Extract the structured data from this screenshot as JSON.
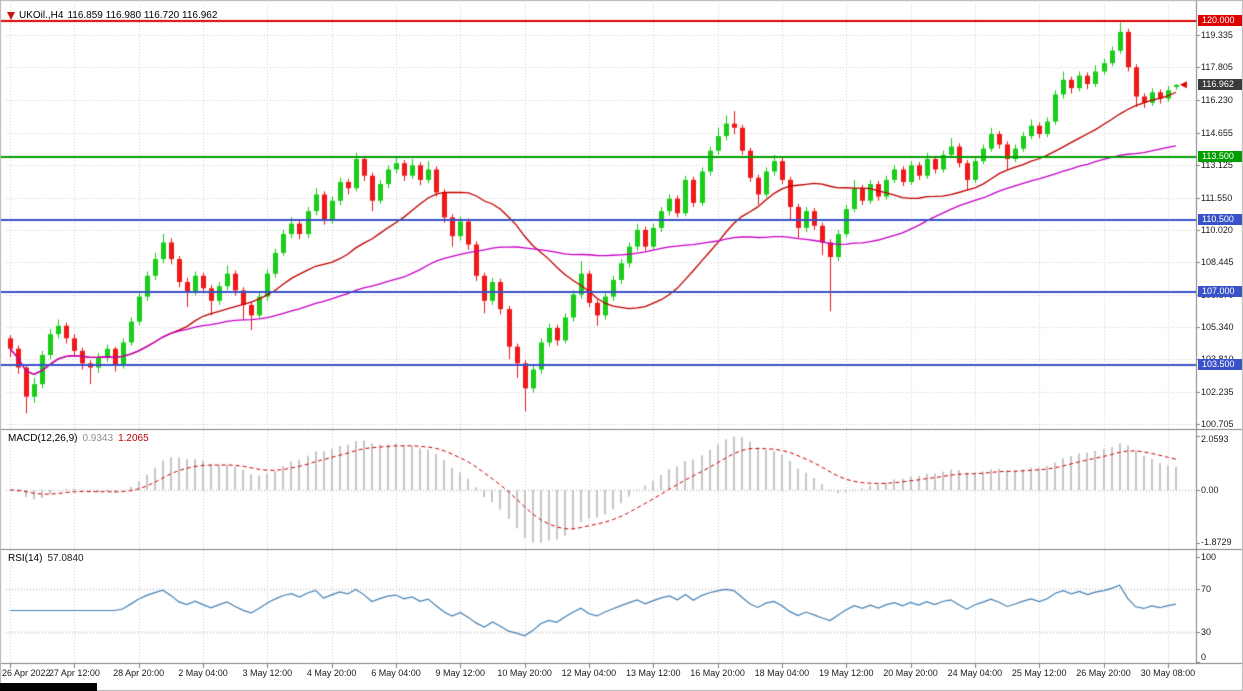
{
  "chart_data": {
    "type": "candlestick",
    "title": {
      "symbol": "UKOil.,H4",
      "ohlc": "116.859 116.980 116.720 116.962"
    },
    "ylim": [
      100.45,
      120.55
    ],
    "price_ticks": [
      "119.335",
      "117.805",
      "116.230",
      "114.655",
      "113.125",
      "111.550",
      "110.020",
      "108.445",
      "106.870",
      "105.340",
      "103.810",
      "102.235",
      "100.705"
    ],
    "time_labels": [
      "26 Apr 2022",
      "27 Apr 12:00",
      "28 Apr 20:00",
      "2 May 04:00",
      "3 May 12:00",
      "4 May 20:00",
      "6 May 04:00",
      "9 May 12:00",
      "10 May 20:00",
      "12 May 04:00",
      "13 May 12:00",
      "16 May 20:00",
      "18 May 04:00",
      "19 May 12:00",
      "20 May 20:00",
      "24 May 04:00",
      "25 May 12:00",
      "26 May 20:00",
      "30 May 08:00"
    ],
    "label_every": 8,
    "colors": {
      "bull": "#19cd19",
      "bear": "#f01818",
      "grid": "#cfcfcf",
      "border": "#808080",
      "background": "#ffffff"
    },
    "mas": [
      {
        "name": "ma-fast",
        "period": 21,
        "color": "#c00000"
      },
      {
        "name": "ma-slow",
        "period": 50,
        "color": "#c800c8"
      }
    ],
    "hlines": [
      {
        "price": 120.0,
        "label": "120.000",
        "color": "#dd0000"
      },
      {
        "price": 113.5,
        "label": "113.500",
        "color": "#009e00"
      },
      {
        "price": 110.5,
        "label": "110.500",
        "color": "#3a52c8"
      },
      {
        "price": 107.0,
        "label": "107.000",
        "color": "#3a52c8"
      },
      {
        "price": 103.5,
        "label": "103.500",
        "color": "#3a52c8"
      }
    ],
    "current_price": {
      "label": "116.962",
      "price": 116.962,
      "color": "#3a3a3a"
    },
    "candles": [
      [
        104.8,
        104.95,
        103.9,
        104.3
      ],
      [
        104.3,
        104.45,
        103.1,
        103.4
      ],
      [
        103.4,
        103.5,
        101.2,
        102.0
      ],
      [
        102.0,
        102.9,
        101.7,
        102.6
      ],
      [
        102.6,
        104.2,
        102.4,
        104.0
      ],
      [
        104.0,
        105.25,
        103.8,
        105.0
      ],
      [
        105.0,
        105.7,
        104.8,
        105.4
      ],
      [
        105.4,
        105.55,
        104.55,
        104.8
      ],
      [
        104.8,
        105.0,
        103.95,
        104.2
      ],
      [
        104.2,
        104.35,
        103.3,
        103.6
      ],
      [
        103.6,
        103.75,
        102.6,
        103.4
      ],
      [
        103.4,
        104.1,
        103.15,
        103.9
      ],
      [
        103.9,
        104.5,
        103.65,
        104.3
      ],
      [
        104.3,
        104.4,
        103.2,
        103.5
      ],
      [
        103.5,
        104.8,
        103.35,
        104.6
      ],
      [
        104.6,
        105.8,
        104.45,
        105.6
      ],
      [
        105.6,
        107.0,
        105.45,
        106.8
      ],
      [
        106.8,
        108.0,
        106.6,
        107.8
      ],
      [
        107.8,
        108.9,
        107.6,
        108.6
      ],
      [
        108.6,
        109.8,
        108.4,
        109.4
      ],
      [
        109.4,
        109.6,
        108.35,
        108.6
      ],
      [
        108.6,
        108.75,
        107.25,
        107.5
      ],
      [
        107.5,
        107.7,
        106.3,
        107.0
      ],
      [
        107.0,
        108.0,
        106.85,
        107.8
      ],
      [
        107.8,
        107.95,
        106.95,
        107.2
      ],
      [
        107.2,
        107.35,
        105.9,
        106.6
      ],
      [
        106.6,
        107.5,
        106.4,
        107.3
      ],
      [
        107.3,
        108.3,
        107.1,
        107.9
      ],
      [
        107.9,
        108.05,
        106.85,
        107.1
      ],
      [
        107.1,
        107.25,
        105.7,
        106.4
      ],
      [
        106.4,
        106.55,
        105.2,
        105.9
      ],
      [
        105.9,
        107.0,
        105.75,
        106.8
      ],
      [
        106.8,
        108.1,
        106.6,
        107.9
      ],
      [
        107.9,
        109.1,
        107.7,
        108.9
      ],
      [
        108.9,
        110.0,
        108.75,
        109.8
      ],
      [
        109.8,
        110.6,
        109.6,
        110.3
      ],
      [
        110.3,
        110.45,
        109.55,
        109.8
      ],
      [
        109.8,
        111.1,
        109.6,
        110.9
      ],
      [
        110.9,
        112.0,
        110.7,
        111.7
      ],
      [
        111.7,
        111.85,
        110.25,
        110.5
      ],
      [
        110.5,
        111.6,
        110.3,
        111.4
      ],
      [
        111.4,
        112.5,
        111.2,
        112.3
      ],
      [
        112.3,
        112.45,
        111.7,
        112.0
      ],
      [
        112.0,
        113.7,
        111.85,
        113.4
      ],
      [
        113.4,
        113.55,
        112.35,
        112.6
      ],
      [
        112.6,
        112.75,
        110.9,
        111.4
      ],
      [
        111.4,
        112.4,
        111.25,
        112.2
      ],
      [
        112.2,
        113.1,
        112.0,
        112.9
      ],
      [
        112.9,
        113.5,
        112.7,
        113.2
      ],
      [
        113.2,
        113.35,
        112.35,
        112.6
      ],
      [
        112.6,
        113.4,
        112.45,
        113.1
      ],
      [
        113.1,
        113.25,
        112.15,
        112.4
      ],
      [
        112.4,
        113.3,
        112.25,
        112.9
      ],
      [
        112.9,
        113.05,
        111.6,
        111.8
      ],
      [
        111.8,
        111.95,
        110.35,
        110.6
      ],
      [
        110.6,
        110.75,
        109.2,
        109.7
      ],
      [
        109.7,
        110.65,
        109.5,
        110.4
      ],
      [
        110.4,
        110.55,
        109.05,
        109.3
      ],
      [
        109.3,
        109.45,
        107.55,
        107.8
      ],
      [
        107.8,
        107.95,
        106.0,
        106.6
      ],
      [
        106.6,
        107.7,
        106.4,
        107.5
      ],
      [
        107.5,
        107.65,
        105.95,
        106.2
      ],
      [
        106.2,
        106.35,
        103.8,
        104.4
      ],
      [
        104.4,
        104.55,
        102.9,
        103.6
      ],
      [
        103.6,
        103.75,
        101.3,
        102.4
      ],
      [
        102.4,
        103.5,
        102.2,
        103.3
      ],
      [
        103.3,
        104.8,
        103.1,
        104.6
      ],
      [
        104.6,
        105.5,
        104.4,
        105.3
      ],
      [
        105.3,
        105.45,
        104.45,
        104.7
      ],
      [
        104.7,
        106.0,
        104.55,
        105.8
      ],
      [
        105.8,
        107.1,
        105.6,
        106.9
      ],
      [
        106.9,
        108.5,
        106.7,
        107.9
      ],
      [
        107.9,
        108.05,
        106.3,
        106.5
      ],
      [
        106.5,
        106.65,
        105.4,
        105.9
      ],
      [
        105.9,
        107.0,
        105.7,
        106.8
      ],
      [
        106.8,
        107.8,
        106.6,
        107.6
      ],
      [
        107.6,
        108.6,
        107.4,
        108.4
      ],
      [
        108.4,
        109.4,
        108.2,
        109.2
      ],
      [
        109.2,
        110.3,
        109.0,
        110.0
      ],
      [
        110.0,
        110.15,
        109.0,
        109.2
      ],
      [
        109.2,
        110.3,
        109.05,
        110.1
      ],
      [
        110.1,
        111.1,
        109.9,
        110.9
      ],
      [
        110.9,
        111.7,
        110.7,
        111.5
      ],
      [
        111.5,
        111.65,
        110.6,
        110.8
      ],
      [
        110.8,
        112.6,
        110.65,
        112.4
      ],
      [
        112.4,
        112.55,
        111.1,
        111.3
      ],
      [
        111.3,
        113.0,
        111.15,
        112.8
      ],
      [
        112.8,
        114.0,
        112.6,
        113.8
      ],
      [
        113.8,
        114.9,
        113.6,
        114.5
      ],
      [
        114.5,
        115.5,
        114.3,
        115.1
      ],
      [
        115.1,
        115.7,
        114.6,
        114.9
      ],
      [
        114.9,
        115.05,
        113.6,
        113.8
      ],
      [
        113.8,
        113.95,
        112.3,
        112.5
      ],
      [
        112.5,
        112.65,
        111.2,
        111.7
      ],
      [
        111.7,
        113.0,
        111.55,
        112.8
      ],
      [
        112.8,
        113.6,
        112.6,
        113.3
      ],
      [
        113.3,
        113.45,
        112.2,
        112.4
      ],
      [
        112.4,
        112.55,
        110.5,
        111.1
      ],
      [
        111.1,
        111.25,
        109.6,
        110.1
      ],
      [
        110.1,
        111.1,
        109.9,
        110.9
      ],
      [
        110.9,
        111.05,
        110.0,
        110.2
      ],
      [
        110.2,
        110.35,
        108.8,
        109.4
      ],
      [
        109.4,
        109.55,
        106.1,
        108.7
      ],
      [
        108.7,
        110.0,
        108.5,
        109.8
      ],
      [
        109.8,
        111.2,
        109.65,
        111.0
      ],
      [
        111.0,
        112.4,
        110.85,
        112.0
      ],
      [
        112.0,
        112.15,
        111.2,
        111.4
      ],
      [
        111.4,
        112.4,
        111.25,
        112.2
      ],
      [
        112.2,
        112.35,
        111.4,
        111.6
      ],
      [
        111.6,
        112.6,
        111.45,
        112.4
      ],
      [
        112.4,
        113.1,
        112.25,
        112.9
      ],
      [
        112.9,
        113.05,
        112.1,
        112.3
      ],
      [
        112.3,
        113.3,
        112.15,
        113.1
      ],
      [
        113.1,
        113.25,
        112.4,
        112.6
      ],
      [
        112.6,
        113.7,
        112.45,
        113.4
      ],
      [
        113.4,
        113.55,
        112.7,
        112.9
      ],
      [
        112.9,
        113.8,
        112.75,
        113.6
      ],
      [
        113.6,
        114.4,
        113.45,
        114.0
      ],
      [
        114.0,
        114.15,
        113.0,
        113.2
      ],
      [
        113.2,
        113.35,
        111.9,
        112.4
      ],
      [
        112.4,
        113.5,
        112.25,
        113.3
      ],
      [
        113.3,
        114.1,
        113.15,
        113.9
      ],
      [
        113.9,
        114.9,
        113.75,
        114.6
      ],
      [
        114.6,
        114.75,
        113.9,
        114.1
      ],
      [
        114.1,
        114.25,
        112.9,
        113.4
      ],
      [
        113.4,
        114.1,
        113.25,
        113.9
      ],
      [
        113.9,
        114.7,
        113.75,
        114.5
      ],
      [
        114.5,
        115.3,
        114.35,
        115.0
      ],
      [
        115.0,
        115.15,
        114.4,
        114.6
      ],
      [
        114.6,
        115.4,
        114.45,
        115.2
      ],
      [
        115.2,
        116.7,
        115.05,
        116.5
      ],
      [
        116.5,
        117.6,
        116.3,
        117.2
      ],
      [
        117.2,
        117.35,
        116.55,
        116.8
      ],
      [
        116.8,
        117.6,
        116.65,
        117.4
      ],
      [
        117.4,
        117.55,
        116.75,
        117.0
      ],
      [
        117.0,
        117.9,
        116.85,
        117.6
      ],
      [
        117.6,
        118.2,
        117.45,
        118.0
      ],
      [
        118.0,
        118.8,
        117.85,
        118.6
      ],
      [
        118.6,
        119.95,
        118.45,
        119.5
      ],
      [
        119.5,
        119.65,
        117.6,
        117.8
      ],
      [
        117.8,
        117.95,
        115.9,
        116.4
      ],
      [
        116.4,
        116.55,
        115.85,
        116.1
      ],
      [
        116.1,
        116.8,
        115.95,
        116.6
      ],
      [
        116.6,
        116.75,
        116.05,
        116.3
      ],
      [
        116.3,
        116.9,
        116.15,
        116.7
      ],
      [
        116.859,
        116.98,
        116.72,
        116.962
      ]
    ],
    "macd": {
      "label": "MACD(12,26,9)",
      "value_main": "0.9343",
      "value_signal": "1.2065",
      "fast": 12,
      "slow": 26,
      "signal": 9,
      "ticks": [
        "2.0593",
        "0.00",
        "-1.8729"
      ],
      "hist_color": "#c6c6c6",
      "signal_color": "#d00000"
    },
    "rsi": {
      "label": "RSI(14)",
      "value": "57.0840",
      "period": 14,
      "ticks": [
        "100",
        "70",
        "30",
        "0"
      ],
      "levels": [
        70,
        30
      ],
      "color": "#4682b4"
    }
  }
}
